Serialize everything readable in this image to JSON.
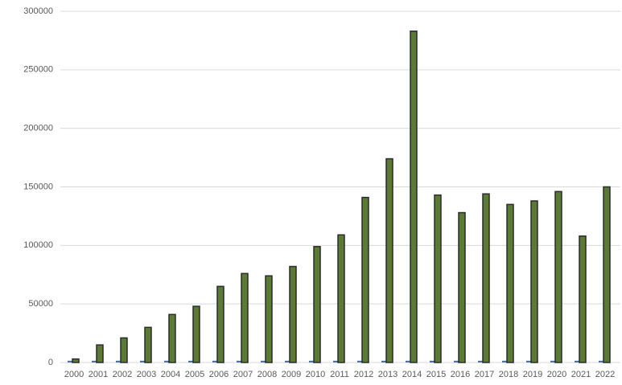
{
  "chart_data": {
    "type": "bar",
    "categories": [
      "2000",
      "2001",
      "2002",
      "2003",
      "2004",
      "2005",
      "2006",
      "2007",
      "2008",
      "2009",
      "2010",
      "2011",
      "2012",
      "2013",
      "2014",
      "2015",
      "2016",
      "2017",
      "2018",
      "2019",
      "2020",
      "2021",
      "2022"
    ],
    "series": [
      {
        "color": "#4472c4",
        "values": [
          1500,
          1500,
          1500,
          1500,
          1500,
          1500,
          1500,
          1500,
          1500,
          1500,
          1500,
          1500,
          1500,
          1500,
          1500,
          1500,
          1500,
          1500,
          1500,
          1500,
          1500,
          1500,
          1500
        ]
      },
      {
        "color": "#5b7a34",
        "values": [
          3000,
          15000,
          21000,
          30000,
          41000,
          48000,
          65000,
          76000,
          74000,
          82000,
          99000,
          109000,
          141000,
          174000,
          283000,
          143000,
          128000,
          144000,
          135000,
          138000,
          146000,
          108000,
          150000
        ]
      }
    ],
    "ylim": [
      0,
      300000
    ],
    "yticks": [
      0,
      50000,
      100000,
      150000,
      200000,
      250000,
      300000
    ],
    "grid": true
  }
}
